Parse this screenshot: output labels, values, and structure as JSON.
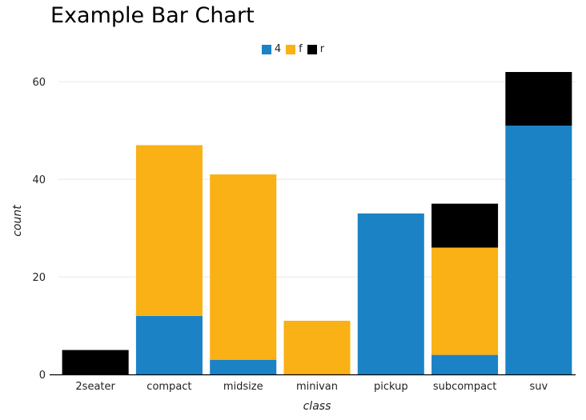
{
  "chart_data": {
    "type": "bar",
    "stacked": true,
    "title": "Example Bar Chart",
    "xlabel": "class",
    "ylabel": "count",
    "categories": [
      "2seater",
      "compact",
      "midsize",
      "minivan",
      "pickup",
      "subcompact",
      "suv"
    ],
    "series": [
      {
        "name": "4",
        "color": "#1b82c6",
        "values": [
          0,
          12,
          3,
          0,
          33,
          4,
          51
        ]
      },
      {
        "name": "f",
        "color": "#fab115",
        "values": [
          0,
          35,
          38,
          11,
          0,
          22,
          0
        ]
      },
      {
        "name": "r",
        "color": "#000000",
        "values": [
          5,
          0,
          0,
          0,
          0,
          9,
          11
        ]
      }
    ],
    "ylim": [
      0,
      62
    ],
    "yticks": [
      0,
      20,
      40,
      60
    ],
    "grid": true,
    "legend_position": "top-center"
  }
}
